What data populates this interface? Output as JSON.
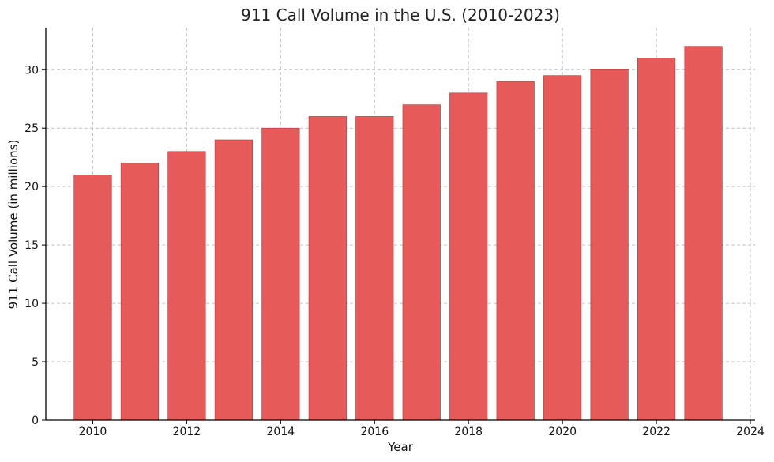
{
  "chart_data": {
    "type": "bar",
    "title": "911 Call Volume in the U.S. (2010-2023)",
    "xlabel": "Year",
    "ylabel": "911 Call Volume (in millions)",
    "x": [
      2010,
      2011,
      2012,
      2013,
      2014,
      2015,
      2016,
      2017,
      2018,
      2019,
      2020,
      2021,
      2022,
      2023
    ],
    "values": [
      21,
      22,
      23,
      24,
      25,
      26,
      26,
      27,
      28,
      29,
      29.5,
      30,
      31,
      32
    ],
    "xlim": [
      2009,
      2024.1
    ],
    "ylim": [
      0,
      33.6
    ],
    "xticks": [
      "2010",
      "2012",
      "2014",
      "2016",
      "2018",
      "2020",
      "2022",
      "2024"
    ],
    "yticks": [
      "0",
      "5",
      "10",
      "15",
      "20",
      "25",
      "30"
    ],
    "grid": true,
    "bar_color": "#e65a5a"
  }
}
